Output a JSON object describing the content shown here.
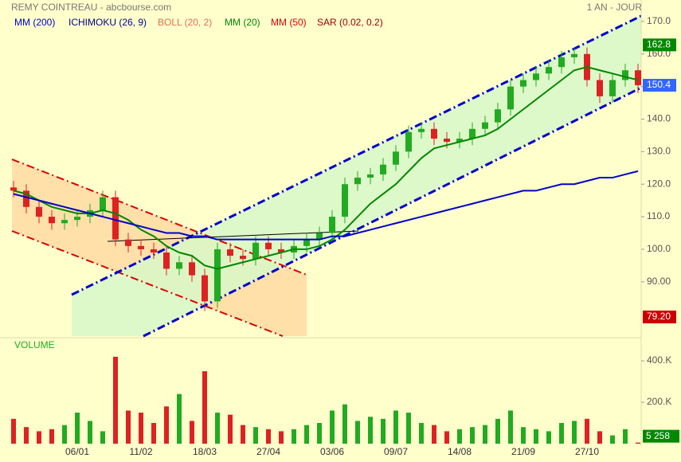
{
  "header": {
    "title": "REMY COINTREAU - abcbourse.com",
    "period": "1 AN - JOUR"
  },
  "legend": [
    {
      "name": "MM (200)",
      "color": "#0000cc"
    },
    {
      "name": "ICHIMOKU (26, 9)",
      "color": "#00008b"
    },
    {
      "name": "BOLL (20, 2)",
      "color": "#e07050"
    },
    {
      "name": "MM (20)",
      "color": "#008800"
    },
    {
      "name": "MM (50)",
      "color": "#dd0000"
    },
    {
      "name": "SAR (0.02, 0.2)",
      "color": "#990000"
    }
  ],
  "chart_data": [
    {
      "type": "candlestick",
      "up_color": "#22aa22",
      "down_color": "#dd2222",
      "categories": [
        null,
        null,
        null,
        null,
        null,
        "06/01",
        null,
        null,
        null,
        null,
        "11/02",
        null,
        null,
        null,
        null,
        "18/03",
        null,
        null,
        null,
        null,
        "27/04",
        null,
        null,
        null,
        null,
        "03/06",
        null,
        null,
        null,
        null,
        "09/07",
        null,
        null,
        null,
        null,
        "14/08",
        null,
        null,
        null,
        null,
        "21/09",
        null,
        null,
        null,
        null,
        "27/10",
        null,
        null,
        null,
        null
      ],
      "open": [
        119,
        118,
        113,
        110,
        108,
        109,
        110,
        112,
        116,
        103,
        101,
        100,
        99,
        94,
        96,
        92,
        84,
        100,
        98,
        97,
        102,
        100,
        99,
        101,
        103,
        105,
        110,
        120,
        122,
        123,
        126,
        130,
        136,
        137,
        134,
        133,
        134,
        137,
        139,
        143,
        150,
        152,
        154,
        156,
        159,
        160,
        152,
        147,
        152,
        155
      ],
      "high": [
        121,
        120,
        115,
        112,
        111,
        112,
        114,
        118,
        118,
        105,
        103,
        102,
        101,
        98,
        98,
        94,
        102,
        102,
        100,
        104,
        104,
        102,
        103,
        105,
        107,
        112,
        122,
        124,
        125,
        128,
        132,
        138,
        139,
        139,
        136,
        136,
        139,
        141,
        145,
        152,
        154,
        156,
        158,
        161,
        162,
        162,
        154,
        154,
        157,
        157
      ],
      "low": [
        116,
        111,
        108,
        106,
        106,
        107,
        108,
        110,
        101,
        99,
        98,
        97,
        92,
        92,
        90,
        81,
        82,
        96,
        95,
        95,
        98,
        97,
        97,
        99,
        101,
        103,
        108,
        118,
        120,
        121,
        124,
        128,
        134,
        132,
        131,
        131,
        132,
        135,
        137,
        141,
        148,
        150,
        152,
        154,
        157,
        150,
        145,
        145,
        150,
        148
      ],
      "close": [
        118,
        113,
        110,
        108,
        109,
        110,
        112,
        116,
        103,
        101,
        100,
        99,
        94,
        96,
        92,
        84,
        100,
        98,
        97,
        102,
        100,
        99,
        101,
        103,
        105,
        110,
        120,
        122,
        123,
        126,
        130,
        136,
        137,
        134,
        133,
        134,
        137,
        139,
        143,
        150,
        152,
        154,
        156,
        159,
        160,
        152,
        147,
        152,
        155,
        150.4
      ],
      "series": [
        {
          "name": "MM (20)",
          "color": "#008800",
          "values": [
            118,
            117,
            115,
            113,
            112,
            111,
            111,
            112,
            111,
            109,
            106,
            104,
            101,
            99,
            98,
            95,
            94,
            95,
            96,
            97,
            98,
            99,
            100,
            100,
            101,
            103,
            106,
            110,
            114,
            117,
            120,
            124,
            128,
            131,
            132,
            133,
            134,
            135,
            137,
            140,
            143,
            146,
            149,
            152,
            155,
            156,
            155,
            154,
            153,
            152
          ]
        },
        {
          "name": "MM (200)",
          "color": "#0000cc",
          "values": [
            117,
            116,
            115,
            114,
            113,
            112,
            111,
            110,
            109,
            108,
            107,
            106,
            105,
            105,
            104,
            104,
            103,
            103,
            103,
            103,
            103,
            103,
            103,
            103,
            103,
            104,
            104,
            105,
            106,
            107,
            108,
            109,
            110,
            111,
            112,
            113,
            114,
            115,
            116,
            117,
            118,
            118,
            119,
            120,
            120,
            121,
            122,
            122,
            123,
            124
          ]
        }
      ],
      "ylim": [
        73.3,
        176.6
      ],
      "yticks": [
        {
          "value": 90,
          "label": "90.00"
        },
        {
          "value": 100,
          "label": "100.0"
        },
        {
          "value": 110,
          "label": "110.0"
        },
        {
          "value": 120,
          "label": "120.0"
        },
        {
          "value": 130,
          "label": "130.0"
        },
        {
          "value": 140,
          "label": "140.0"
        },
        {
          "value": 150,
          "label": "150.0"
        },
        {
          "value": 160,
          "label": "160.0"
        },
        {
          "value": 170,
          "label": "170.0"
        }
      ],
      "price_tags": [
        {
          "value": 162.8,
          "label": "162.8",
          "color": "#008800"
        },
        {
          "value": 150.4,
          "label": "150.4",
          "color": "#3366ff"
        },
        {
          "value": 79.2,
          "label": "79.20",
          "color": "#cc0000"
        }
      ]
    },
    {
      "type": "bar",
      "title": "VOLUME",
      "values": [
        120000,
        80000,
        60000,
        70000,
        90000,
        150000,
        110000,
        60000,
        420000,
        160000,
        150000,
        100000,
        180000,
        240000,
        110000,
        350000,
        150000,
        140000,
        90000,
        80000,
        70000,
        60000,
        70000,
        90000,
        100000,
        160000,
        190000,
        110000,
        130000,
        120000,
        160000,
        150000,
        100000,
        90000,
        60000,
        70000,
        80000,
        90000,
        120000,
        160000,
        80000,
        70000,
        60000,
        100000,
        110000,
        120000,
        60000,
        40000,
        70000,
        5258
      ],
      "ylim": [
        0,
        508000
      ],
      "yticks": [
        {
          "value": 200000,
          "label": "200.K"
        },
        {
          "value": 400000,
          "label": "400.K"
        }
      ],
      "last_tag": {
        "value": 5258,
        "label": "5 258",
        "color": "#008800"
      }
    }
  ]
}
